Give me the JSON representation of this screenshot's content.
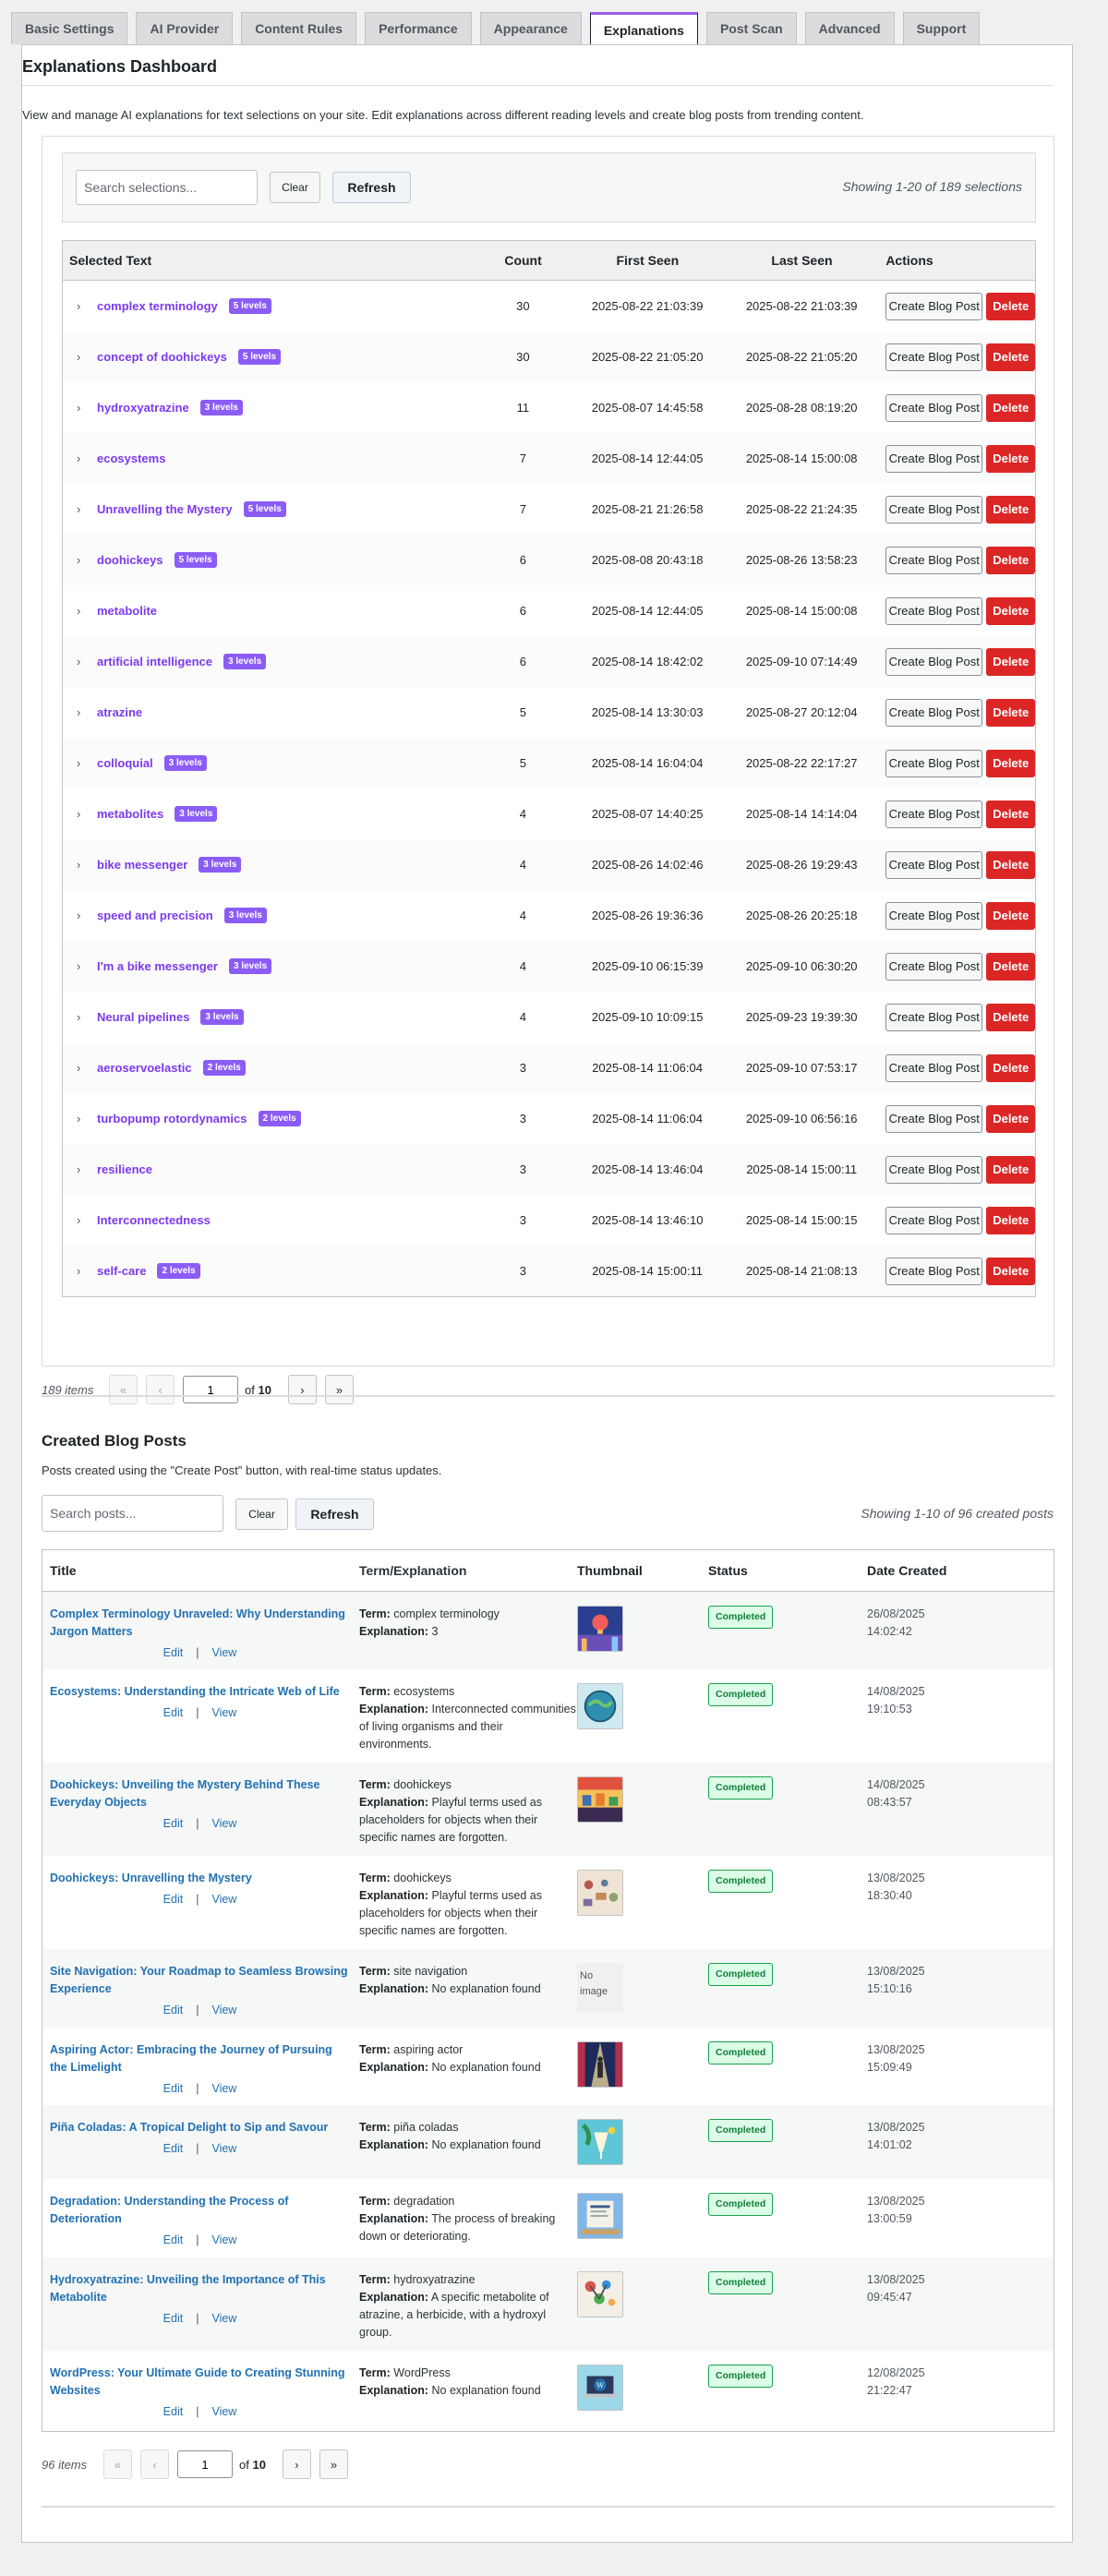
{
  "tabs": [
    "Basic Settings",
    "AI Provider",
    "Content Rules",
    "Performance",
    "Appearance",
    "Explanations",
    "Post Scan",
    "Advanced",
    "Support"
  ],
  "active_tab": "Explanations",
  "page": {
    "title": "Explanations Dashboard",
    "intro": "View and manage AI explanations for text selections on your site. Edit explanations across different reading levels and create blog posts from trending content."
  },
  "selections": {
    "search_placeholder": "Search selections...",
    "clear_label": "Clear",
    "refresh_label": "Refresh",
    "showing": "Showing 1-20 of 189 selections",
    "headers": {
      "selected": "Selected Text",
      "count": "Count",
      "first": "First Seen",
      "last": "Last Seen",
      "actions": "Actions"
    },
    "create_label": "Create Blog Post",
    "delete_label": "Delete",
    "rows": [
      {
        "term": "complex terminology",
        "levels": "5 levels",
        "count": "30",
        "first": "2025-08-22 21:03:39",
        "last": "2025-08-22 21:03:39"
      },
      {
        "term": "concept of doohickeys",
        "levels": "5 levels",
        "count": "30",
        "first": "2025-08-22 21:05:20",
        "last": "2025-08-22 21:05:20"
      },
      {
        "term": "hydroxyatrazine",
        "levels": "3 levels",
        "count": "11",
        "first": "2025-08-07 14:45:58",
        "last": "2025-08-28 08:19:20"
      },
      {
        "term": "ecosystems",
        "levels": "",
        "count": "7",
        "first": "2025-08-14 12:44:05",
        "last": "2025-08-14 15:00:08"
      },
      {
        "term": "Unravelling the Mystery",
        "levels": "5 levels",
        "count": "7",
        "first": "2025-08-21 21:26:58",
        "last": "2025-08-22 21:24:35"
      },
      {
        "term": "doohickeys",
        "levels": "5 levels",
        "count": "6",
        "first": "2025-08-08 20:43:18",
        "last": "2025-08-26 13:58:23"
      },
      {
        "term": "metabolite",
        "levels": "",
        "count": "6",
        "first": "2025-08-14 12:44:05",
        "last": "2025-08-14 15:00:08"
      },
      {
        "term": "artificial intelligence",
        "levels": "3 levels",
        "count": "6",
        "first": "2025-08-14 18:42:02",
        "last": "2025-09-10 07:14:49"
      },
      {
        "term": "atrazine",
        "levels": "",
        "count": "5",
        "first": "2025-08-14 13:30:03",
        "last": "2025-08-27 20:12:04"
      },
      {
        "term": "colloquial",
        "levels": "3 levels",
        "count": "5",
        "first": "2025-08-14 16:04:04",
        "last": "2025-08-22 22:17:27"
      },
      {
        "term": "metabolites",
        "levels": "3 levels",
        "count": "4",
        "first": "2025-08-07 14:40:25",
        "last": "2025-08-14 14:14:04"
      },
      {
        "term": "bike messenger",
        "levels": "3 levels",
        "count": "4",
        "first": "2025-08-26 14:02:46",
        "last": "2025-08-26 19:29:43"
      },
      {
        "term": "speed and precision",
        "levels": "3 levels",
        "count": "4",
        "first": "2025-08-26 19:36:36",
        "last": "2025-08-26 20:25:18"
      },
      {
        "term": "I'm a bike messenger",
        "levels": "3 levels",
        "count": "4",
        "first": "2025-09-10 06:15:39",
        "last": "2025-09-10 06:30:20"
      },
      {
        "term": "Neural pipelines",
        "levels": "3 levels",
        "count": "4",
        "first": "2025-09-10 10:09:15",
        "last": "2025-09-23 19:39:30"
      },
      {
        "term": "aeroservoelastic",
        "levels": "2 levels",
        "count": "3",
        "first": "2025-08-14 11:06:04",
        "last": "2025-09-10 07:53:17"
      },
      {
        "term": "turbopump rotordynamics",
        "levels": "2 levels",
        "count": "3",
        "first": "2025-08-14 11:06:04",
        "last": "2025-09-10 06:56:16"
      },
      {
        "term": "resilience",
        "levels": "",
        "count": "3",
        "first": "2025-08-14 13:46:04",
        "last": "2025-08-14 15:00:11"
      },
      {
        "term": "Interconnectedness",
        "levels": "",
        "count": "3",
        "first": "2025-08-14 13:46:10",
        "last": "2025-08-14 15:00:15"
      },
      {
        "term": "self-care",
        "levels": "2 levels",
        "count": "3",
        "first": "2025-08-14 15:00:11",
        "last": "2025-08-14 21:08:13"
      }
    ],
    "pagination": {
      "items": "189 items",
      "first": "«",
      "prev": "‹",
      "current": "1",
      "of": "of",
      "total": "10",
      "next": "›",
      "last": "»"
    }
  },
  "posts": {
    "title": "Created Blog Posts",
    "subtitle": "Posts created using the \"Create Post\" button, with real-time status updates.",
    "search_placeholder": "Search posts...",
    "clear_label": "Clear",
    "refresh_label": "Refresh",
    "showing": "Showing 1-10 of 96 created posts",
    "headers": {
      "title": "Title",
      "term": "Term/Explanation",
      "thumb": "Thumbnail",
      "status": "Status",
      "date": "Date Created"
    },
    "term_label": "Term:",
    "expl_label": "Explanation:",
    "edit_label": "Edit",
    "view_label": "View",
    "sep": "|",
    "no_image": "No image",
    "rows": [
      {
        "title": "Complex Terminology Unraveled: Why Understanding Jargon Matters",
        "term": "complex terminology",
        "expl": "3",
        "thumb": "balloon-city",
        "status": "Completed",
        "date": "26/08/2025",
        "time": "14:02:42",
        "h": 84
      },
      {
        "title": "Ecosystems: Understanding the Intricate Web of Life",
        "term": "ecosystems",
        "expl": "Interconnected communities of living organisms and their environments.",
        "thumb": "globe-eco",
        "status": "Completed",
        "date": "14/08/2025",
        "time": "19:10:53",
        "h": 101
      },
      {
        "title": "Doohickeys: Unveiling the Mystery Behind These Everyday Objects",
        "term": "doohickeys",
        "expl": "Playful terms used as placeholders for objects when their specific names are forgotten.",
        "thumb": "market-stall",
        "status": "Completed",
        "date": "14/08/2025",
        "time": "08:43:57",
        "h": 101
      },
      {
        "title": "Doohickeys: Unravelling the Mystery",
        "term": "doohickeys",
        "expl": "Playful terms used as placeholders for objects when their specific names are forgotten.",
        "thumb": "gadgets-table",
        "status": "Completed",
        "date": "13/08/2025",
        "time": "18:30:40",
        "h": 101
      },
      {
        "title": "Site Navigation: Your Roadmap to Seamless Browsing Experience",
        "term": "site navigation",
        "expl": "No explanation found",
        "thumb": "",
        "status": "Completed",
        "date": "13/08/2025",
        "time": "15:10:16",
        "h": 85
      },
      {
        "title": "Aspiring Actor: Embracing the Journey of Pursuing the Limelight",
        "term": "aspiring actor",
        "expl": "No explanation found",
        "thumb": "stage-actor",
        "status": "Completed",
        "date": "13/08/2025",
        "time": "15:09:49",
        "h": 84
      },
      {
        "title": "Piña Coladas: A Tropical Delight to Sip and Savour",
        "term": "piña coladas",
        "expl": "No explanation found",
        "thumb": "tropical-drink",
        "status": "Completed",
        "date": "13/08/2025",
        "time": "14:01:02",
        "h": 80
      },
      {
        "title": "Degradation: Understanding the Process of Deterioration",
        "term": "degradation",
        "expl": "The process of breaking down or deteriorating.",
        "thumb": "document-decay",
        "status": "Completed",
        "date": "13/08/2025",
        "time": "13:00:59",
        "h": 85
      },
      {
        "title": "Hydroxyatrazine: Unveiling the Importance of This Metabolite",
        "term": "hydroxyatrazine",
        "expl": "A specific metabolite of atrazine, a herbicide, with a hydroxyl group.",
        "thumb": "molecules",
        "status": "Completed",
        "date": "13/08/2025",
        "time": "09:45:47",
        "h": 101
      },
      {
        "title": "WordPress: Your Ultimate Guide to Creating Stunning Websites",
        "term": "WordPress",
        "expl": "No explanation found",
        "thumb": "wordpress-laptop",
        "status": "Completed",
        "date": "12/08/2025",
        "time": "21:22:47",
        "h": 87
      }
    ],
    "pagination": {
      "items": "96 items",
      "first": "«",
      "prev": "‹",
      "current": "1",
      "of": "of",
      "total": "10",
      "next": "›",
      "last": "»"
    }
  },
  "colors": {
    "accent": "#7c3aed",
    "badge": "#8b5cf6",
    "delete": "#dc2626",
    "link": "#2271b1",
    "success": "#16a34a"
  }
}
